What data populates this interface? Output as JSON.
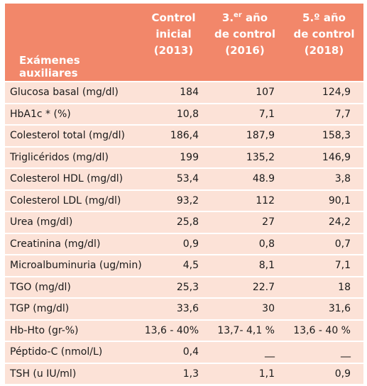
{
  "table": {
    "header_color": "#f2876a",
    "row_color": "#fce2d7",
    "headers": {
      "col0": [
        "Exámenes",
        "auxiliares"
      ],
      "col1": [
        "Control",
        "inicial",
        "(2013)"
      ],
      "col2": {
        "line1_pre": "3.",
        "line1_sup": "er",
        "line1_post": " año",
        "line2": "de control",
        "line3": "(2016)"
      },
      "col3": [
        "5.º año",
        "de control",
        "(2018)"
      ]
    },
    "rows": [
      {
        "label": "Glucosa basal (mg/dl)",
        "v2013": "184",
        "v2016": "107",
        "v2018": "124,9"
      },
      {
        "label": "HbA1c * (%)",
        "v2013": "10,8",
        "v2016": "7,1",
        "v2018": "7,7"
      },
      {
        "label": "Colesterol total (mg/dl)",
        "v2013": "186,4",
        "v2016": "187,9",
        "v2018": "158,3"
      },
      {
        "label": "Triglicéridos (mg/dl)",
        "v2013": "199",
        "v2016": "135,2",
        "v2018": "146,9"
      },
      {
        "label": "Colesterol HDL (mg/dl)",
        "v2013": "53,4",
        "v2016": "48.9",
        "v2018": "3,8"
      },
      {
        "label": "Colesterol LDL (mg/dl)",
        "v2013": "93,2",
        "v2016": "112",
        "v2018": "90,1"
      },
      {
        "label": "Urea (mg/dl)",
        "v2013": "25,8",
        "v2016": "27",
        "v2018": "24,2"
      },
      {
        "label": "Creatinina (mg/dl)",
        "v2013": "0,9",
        "v2016": "0,8",
        "v2018": "0,7"
      },
      {
        "label": "Microalbuminuria (ug/min)",
        "v2013": "4,5",
        "v2016": "8,1",
        "v2018": "7,1"
      },
      {
        "label": "TGO (mg/dl)",
        "v2013": "25,3",
        "v2016": "22.7",
        "v2018": "18"
      },
      {
        "label": "TGP (mg/dl)",
        "v2013": "33,6",
        "v2016": "30",
        "v2018": "31,6"
      },
      {
        "label": "Hb-Hto (gr-%)",
        "v2013": "13,6 - 40%",
        "v2016": "13,7- 4,1 %",
        "v2018": "13,6 - 40 %"
      },
      {
        "label": "Péptido-C (nmol/L)",
        "v2013": "0,4",
        "v2016": "__",
        "v2018": "__"
      },
      {
        "label": "TSH (u IU/ml)",
        "v2013": "1,3",
        "v2016": "1,1",
        "v2018": "0,9"
      }
    ]
  }
}
